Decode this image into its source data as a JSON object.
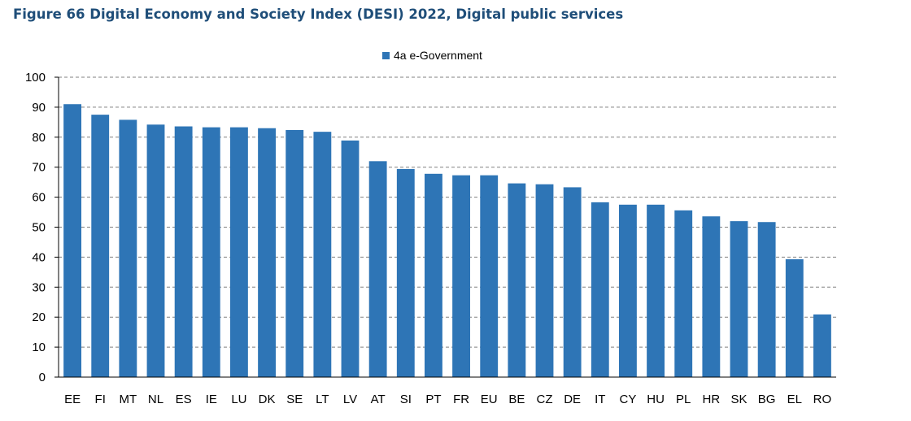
{
  "title": "Figure 66 Digital Economy and Society Index (DESI) 2022, Digital public services",
  "chart_data": {
    "type": "bar",
    "title": "Figure 66 Digital Economy and Society Index (DESI) 2022, Digital public services",
    "xlabel": "",
    "ylabel": "",
    "ylim": [
      0,
      100
    ],
    "yticks": [
      0,
      10,
      20,
      30,
      40,
      50,
      60,
      70,
      80,
      90,
      100
    ],
    "grid": true,
    "legend_position": "top-center",
    "bar_color": "#2e75b6",
    "categories": [
      "EE",
      "FI",
      "MT",
      "NL",
      "ES",
      "IE",
      "LU",
      "DK",
      "SE",
      "LT",
      "LV",
      "AT",
      "SI",
      "PT",
      "FR",
      "EU",
      "BE",
      "CZ",
      "DE",
      "IT",
      "CY",
      "HU",
      "PL",
      "HR",
      "SK",
      "BG",
      "EL",
      "RO"
    ],
    "series": [
      {
        "name": "4a e-Government",
        "values": [
          91.0,
          87.5,
          85.8,
          84.2,
          83.6,
          83.3,
          83.3,
          83.0,
          82.4,
          81.8,
          78.9,
          72.0,
          69.4,
          67.8,
          67.3,
          67.3,
          64.6,
          64.3,
          63.3,
          58.3,
          57.5,
          57.5,
          55.6,
          53.6,
          52.0,
          51.7,
          39.3,
          20.9
        ]
      }
    ]
  }
}
